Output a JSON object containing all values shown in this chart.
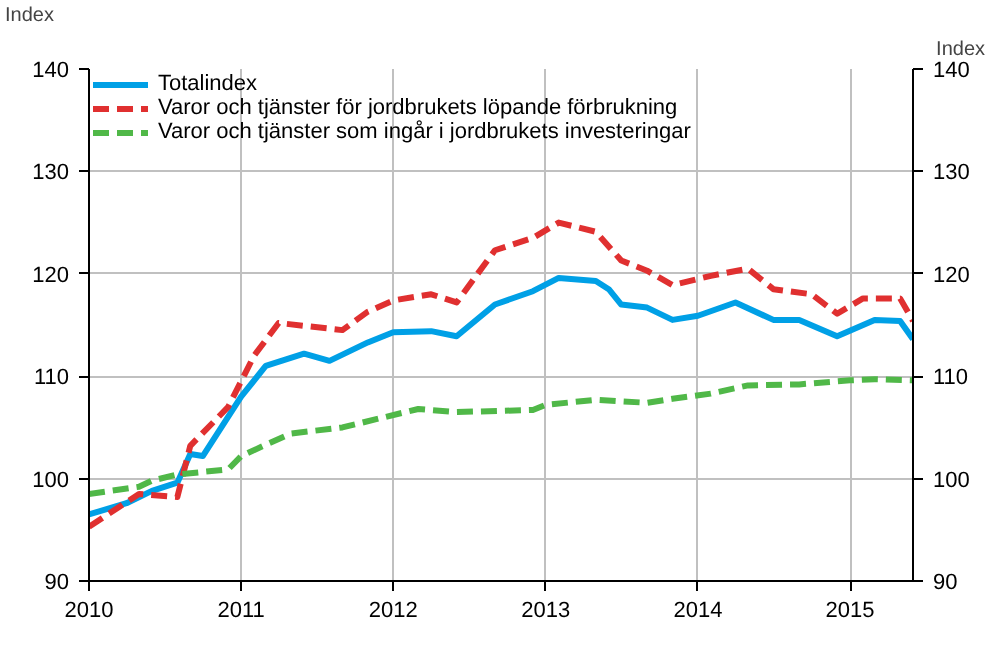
{
  "chart_data": {
    "type": "line",
    "ylabel": "Index",
    "y2label": "Index",
    "xlim": [
      "2010-01",
      "2015-06"
    ],
    "xticks": [
      {
        "value": "2010-01",
        "label": "2010"
      },
      {
        "value": "2011-01",
        "label": "2011"
      },
      {
        "value": "2012-01",
        "label": "2012"
      },
      {
        "value": "2013-01",
        "label": "2013"
      },
      {
        "value": "2014-01",
        "label": "2014"
      },
      {
        "value": "2015-01",
        "label": "2015"
      }
    ],
    "ylim": [
      90,
      140
    ],
    "yticks": [
      90,
      100,
      110,
      120,
      130,
      140
    ],
    "y2lim": [
      90,
      140
    ],
    "y2ticks": [
      90,
      100,
      110,
      120,
      130,
      140
    ],
    "grid": true,
    "legend": "top left",
    "series": [
      {
        "name": "Totalindex",
        "color": "#00a0e6",
        "line_style": "solid",
        "x": [
          "2010-01",
          "2010-04",
          "2010-06",
          "2010-08",
          "2010-09",
          "2010-10",
          "2011-01",
          "2011-03",
          "2011-06",
          "2011-08",
          "2011-11",
          "2012-01",
          "2012-04",
          "2012-06",
          "2012-09",
          "2012-12",
          "2013-02",
          "2013-05",
          "2013-06",
          "2013-07",
          "2013-09",
          "2013-11",
          "2014-01",
          "2014-04",
          "2014-07",
          "2014-09",
          "2014-12",
          "2015-03",
          "2015-05",
          "2015-06"
        ],
        "values": [
          96.5,
          97.6,
          98.8,
          99.6,
          102.4,
          102.2,
          108,
          111,
          112.2,
          111.5,
          113.3,
          114.3,
          114.4,
          113.9,
          117,
          118.3,
          119.6,
          119.3,
          118.5,
          117,
          116.7,
          115.5,
          115.9,
          117.2,
          115.5,
          115.5,
          113.9,
          115.5,
          115.4,
          113.6
        ]
      },
      {
        "name": "Varor och tjänster för jordbrukets löpande förbrukning",
        "color": "#e03030",
        "line_style": "dashed",
        "x": [
          "2010-01",
          "2010-05",
          "2010-08",
          "2010-09",
          "2010-12",
          "2011-02",
          "2011-04",
          "2011-09",
          "2011-11",
          "2012-01",
          "2012-04",
          "2012-06",
          "2012-09",
          "2012-12",
          "2013-02",
          "2013-05",
          "2013-07",
          "2013-09",
          "2013-11",
          "2014-02",
          "2014-05",
          "2014-07",
          "2014-10",
          "2014-12",
          "2015-02",
          "2015-05",
          "2015-06"
        ],
        "values": [
          95.3,
          98.5,
          98.2,
          103.2,
          107,
          112,
          115.2,
          114.5,
          116.3,
          117.4,
          118,
          117.2,
          122.3,
          123.5,
          125,
          124.1,
          121.3,
          120.3,
          118.9,
          119.8,
          120.5,
          118.5,
          118,
          116.1,
          117.6,
          117.6,
          115.4
        ]
      },
      {
        "name": "Varor och tjänster som ingår i jordbrukets investeringar",
        "color": "#50b848",
        "line_style": "dashed",
        "x": [
          "2010-01",
          "2010-05",
          "2010-06",
          "2010-08",
          "2010-12",
          "2011-01",
          "2011-03",
          "2011-05",
          "2011-09",
          "2011-12",
          "2012-03",
          "2012-06",
          "2012-12",
          "2013-01",
          "2013-05",
          "2013-09",
          "2013-11",
          "2014-02",
          "2014-05",
          "2014-09",
          "2015-01",
          "2015-03",
          "2015-06"
        ],
        "values": [
          98.5,
          99.2,
          99.8,
          100.4,
          100.9,
          102.2,
          103.3,
          104.4,
          105,
          105.9,
          106.8,
          106.5,
          106.7,
          107.2,
          107.7,
          107.4,
          107.8,
          108.3,
          109.1,
          109.2,
          109.6,
          109.7,
          109.6
        ]
      }
    ]
  }
}
